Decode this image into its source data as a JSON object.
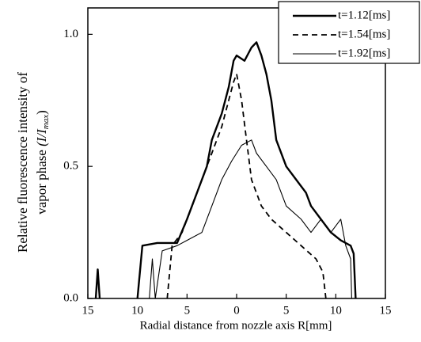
{
  "chart_data": {
    "type": "line",
    "y_label": [
      "Relative fluorescence intensity of",
      "vapor phase",
      "(I/I",
      "max",
      ")"
    ],
    "x_label": "Radial distance from nozzle axis  R[mm]",
    "xlim": [
      -15,
      15
    ],
    "xticks": [
      {
        "value": -15,
        "label": "15"
      },
      {
        "value": -10,
        "label": "10"
      },
      {
        "value": -5,
        "label": "5"
      },
      0,
      5,
      10,
      15
    ],
    "ylim": [
      0,
      1.1
    ],
    "yticks": [
      {
        "value": 0,
        "label": "0.0"
      },
      0.5,
      {
        "value": 1,
        "label": "1.0"
      }
    ],
    "legend": "top-right",
    "series": [
      {
        "name": "t=1.12[ms]",
        "color": "#000000",
        "dash": "solid",
        "width": 2.4,
        "x": [
          -14.2,
          -14,
          -13.8,
          null,
          -10,
          -9.5,
          -8,
          -6,
          -5,
          -4,
          -3,
          -2.5,
          -1.5,
          -0.8,
          -0.3,
          0,
          0.8,
          1.5,
          2,
          2.5,
          3,
          3.5,
          4,
          5,
          6,
          7,
          7.5,
          8.5,
          9.5,
          10.5,
          11.5,
          11.8,
          12
        ],
        "values": [
          0,
          0.11,
          0,
          null,
          0,
          0.2,
          0.21,
          0.21,
          0.3,
          0.4,
          0.5,
          0.6,
          0.7,
          0.8,
          0.9,
          0.92,
          0.9,
          0.95,
          0.97,
          0.92,
          0.85,
          0.75,
          0.6,
          0.5,
          0.45,
          0.4,
          0.35,
          0.3,
          0.25,
          0.22,
          0.2,
          0.17,
          0
        ]
      },
      {
        "name": "t=1.54[ms]",
        "color": "#000000",
        "dash": "dashed",
        "width": 1.8,
        "x": [
          -7,
          -6.5,
          -5.5,
          -4.5,
          -3.5,
          -2.5,
          -1.5,
          -0.8,
          -0.3,
          0,
          0.5,
          1,
          1.5,
          2.5,
          3.5,
          5,
          6.5,
          8,
          8.7,
          9
        ],
        "values": [
          0,
          0.2,
          0.25,
          0.35,
          0.45,
          0.55,
          0.65,
          0.75,
          0.82,
          0.85,
          0.75,
          0.6,
          0.45,
          0.35,
          0.3,
          0.25,
          0.2,
          0.15,
          0.1,
          0
        ]
      },
      {
        "name": "t=1.92[ms]",
        "color": "#000000",
        "dash": "solid",
        "width": 1.1,
        "x": [
          -8.8,
          -8.5,
          -8.2,
          -7.5,
          -6,
          -5,
          -3.5,
          -2.5,
          -1.5,
          -0.5,
          0.5,
          1.5,
          2,
          3,
          4,
          5,
          6.5,
          7.5,
          8.5,
          9.5,
          10.5,
          11,
          11.5,
          11.6
        ],
        "values": [
          0,
          0.15,
          0,
          0.18,
          0.2,
          0.22,
          0.25,
          0.35,
          0.45,
          0.52,
          0.58,
          0.6,
          0.55,
          0.5,
          0.45,
          0.35,
          0.3,
          0.25,
          0.3,
          0.25,
          0.3,
          0.2,
          0.15,
          0
        ]
      }
    ]
  }
}
